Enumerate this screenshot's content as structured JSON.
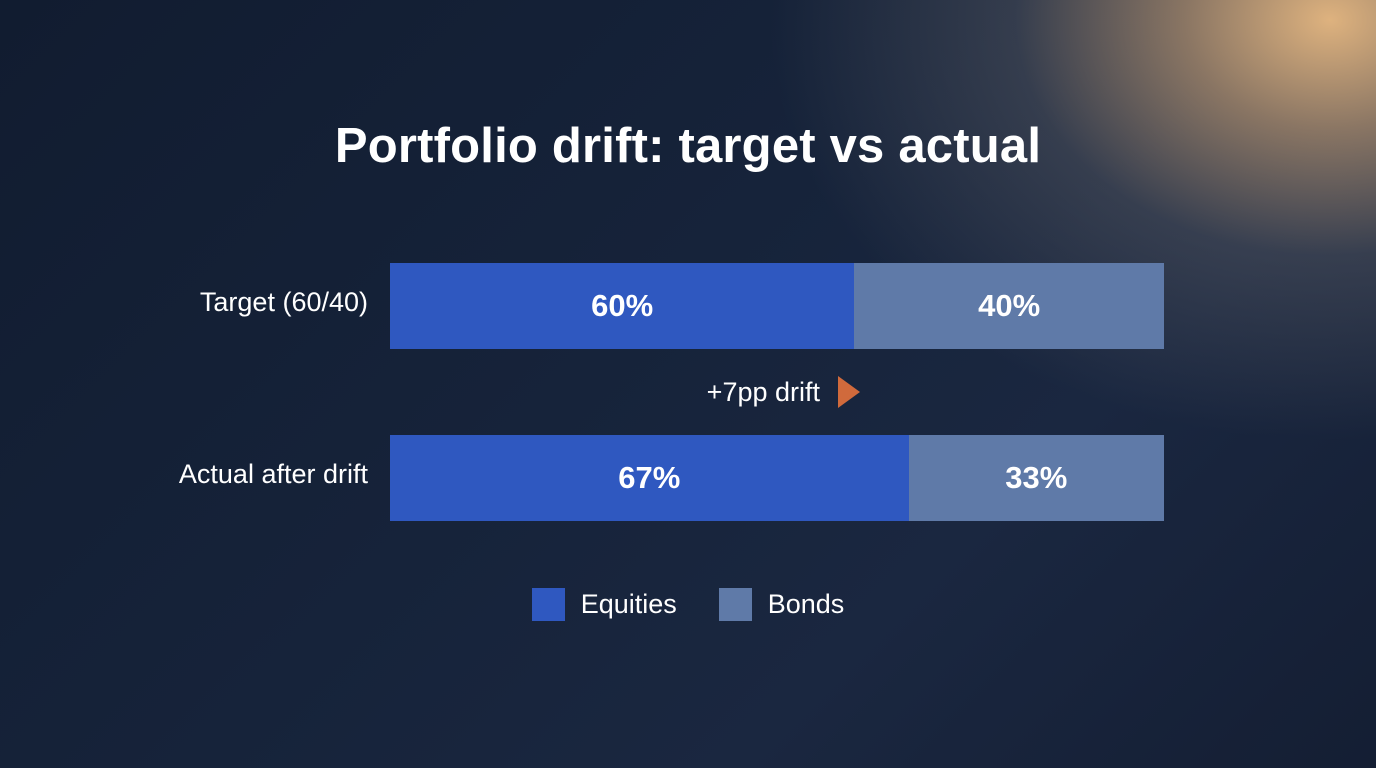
{
  "colors": {
    "equities": "#2f58c0",
    "bonds": "#5f7aa8",
    "drift_arrow": "#d06a3c"
  },
  "annotation": {
    "drift_text": "+7pp drift",
    "arrow_icon": "triangle-right-icon"
  },
  "chart_data": {
    "type": "bar",
    "orientation": "horizontal",
    "stacked": true,
    "title": "Portfolio drift: target vs actual",
    "categories": [
      "Target (60/40)",
      "Actual after drift"
    ],
    "series": [
      {
        "name": "Equities",
        "values": [
          60,
          67
        ],
        "labels": [
          "60%",
          "67%"
        ]
      },
      {
        "name": "Bonds",
        "values": [
          40,
          33
        ],
        "labels": [
          "40%",
          "33%"
        ]
      }
    ],
    "xlim": [
      0,
      100
    ],
    "grid": false,
    "legend_position": "bottom-center"
  }
}
